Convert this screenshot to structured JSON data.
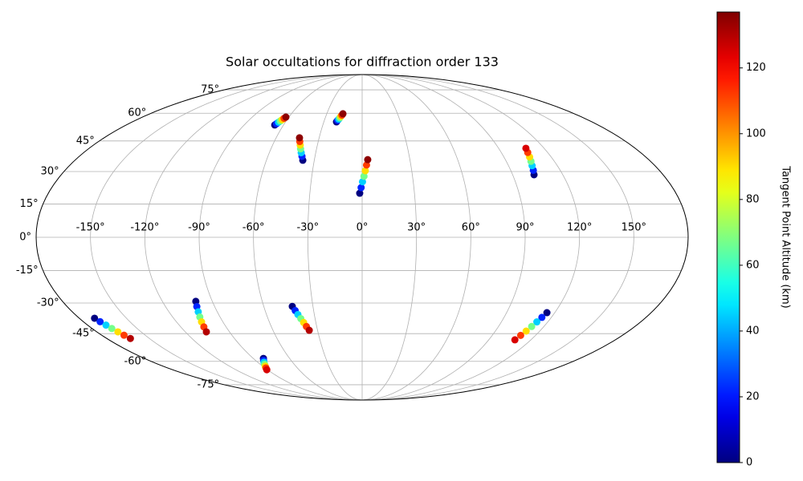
{
  "chart_data": {
    "type": "scatter",
    "projection": "mollweide",
    "title": "Solar occultations for diffraction order 133",
    "xlim": [
      -180,
      180
    ],
    "ylim": [
      -90,
      90
    ],
    "grid": true,
    "xticks": [
      {
        "value": -150,
        "label": "-150°"
      },
      {
        "value": -120,
        "label": "-120°"
      },
      {
        "value": -90,
        "label": "-90°"
      },
      {
        "value": -60,
        "label": "-60°"
      },
      {
        "value": -30,
        "label": "-30°"
      },
      {
        "value": 0,
        "label": "0°"
      },
      {
        "value": 30,
        "label": "30°"
      },
      {
        "value": 60,
        "label": "60°"
      },
      {
        "value": 90,
        "label": "90°"
      },
      {
        "value": 120,
        "label": "120°"
      },
      {
        "value": 150,
        "label": "150°"
      }
    ],
    "yticks": [
      {
        "value": -75,
        "label": "-75°"
      },
      {
        "value": -60,
        "label": "-60°"
      },
      {
        "value": -45,
        "label": "-45°"
      },
      {
        "value": -30,
        "label": "-30°"
      },
      {
        "value": -15,
        "label": "-15°"
      },
      {
        "value": 0,
        "label": "0°"
      },
      {
        "value": 15,
        "label": "15°"
      },
      {
        "value": 30,
        "label": "30°"
      },
      {
        "value": 45,
        "label": "45°"
      },
      {
        "value": 60,
        "label": "60°"
      },
      {
        "value": 75,
        "label": "75°"
      }
    ],
    "colormap": "jet",
    "clim": [
      0,
      137
    ],
    "colorbar_label": "Tangent Point Altitude (km)",
    "colorbar_ticks": [
      0,
      20,
      40,
      60,
      80,
      100,
      120
    ],
    "series": [
      {
        "lon": [
          -66.7,
          -66.0,
          -65.3,
          -64.6,
          -63.9,
          -63.2,
          -62.5
        ],
        "lat": [
          53.4,
          54.1,
          54.9,
          55.6,
          56.3,
          57.1,
          57.8
        ],
        "altitude": [
          0,
          22,
          45,
          67,
          90,
          112,
          135
        ]
      },
      {
        "lon": [
          -37.2,
          -38.3,
          -39.4,
          -40.5,
          -41.5,
          -42.6,
          -43.7
        ],
        "lat": [
          35.4,
          37.3,
          39.1,
          41.0,
          42.9,
          44.7,
          46.6
        ],
        "altitude": [
          0,
          22,
          45,
          67,
          90,
          112,
          135
        ]
      },
      {
        "lon": [
          -20.1,
          -19.5,
          -18.8,
          -18.2,
          -17.6,
          -16.9,
          -16.3
        ],
        "lat": [
          55.1,
          55.9,
          56.6,
          57.4,
          58.2,
          58.9,
          59.7
        ],
        "altitude": [
          0,
          22,
          45,
          67,
          90,
          112,
          135
        ]
      },
      {
        "lon": [
          -1.4,
          -0.6,
          0.2,
          1.1,
          1.9,
          2.7,
          3.5
        ],
        "lat": [
          19.9,
          22.5,
          25.2,
          27.8,
          30.4,
          33.1,
          35.7
        ],
        "altitude": [
          0,
          22,
          45,
          67,
          90,
          112,
          135
        ]
      },
      {
        "lon": [
          102.8,
          103.7,
          104.5,
          105.4,
          106.3,
          107.1,
          108.0
        ],
        "lat": [
          28.5,
          30.6,
          32.8,
          34.9,
          37.0,
          39.2,
          41.3
        ],
        "altitude": [
          0,
          22,
          45,
          67,
          90,
          112,
          125
        ]
      },
      {
        "lon": [
          -170.3,
          -169.2,
          -168.0,
          -166.9,
          -165.7,
          -164.6,
          -163.4
        ],
        "lat": [
          -37.3,
          -39.0,
          -40.7,
          -42.4,
          -44.1,
          -45.8,
          -47.5
        ],
        "altitude": [
          0,
          22,
          45,
          67,
          90,
          112,
          130
        ]
      },
      {
        "lon": [
          -99.9,
          -100.9,
          -101.8,
          -102.8,
          -103.8,
          -104.7,
          -105.7
        ],
        "lat": [
          -29.2,
          -31.7,
          -34.2,
          -36.7,
          -39.1,
          -41.6,
          -44.1
        ],
        "altitude": [
          0,
          22,
          45,
          67,
          90,
          112,
          130
        ]
      },
      {
        "lon": [
          -42.6,
          -41.4,
          -40.3,
          -39.1,
          -37.9,
          -36.8,
          -35.6
        ],
        "lat": [
          -31.6,
          -33.6,
          -35.5,
          -37.5,
          -39.4,
          -41.4,
          -43.3
        ],
        "altitude": [
          0,
          22,
          45,
          67,
          90,
          112,
          130
        ]
      },
      {
        "lon": [
          -81.6,
          -83.1,
          -84.6,
          -86.1,
          -87.6,
          -89.1,
          -90.6
        ],
        "lat": [
          -58.3,
          -59.4,
          -60.5,
          -61.7,
          -62.8,
          -63.9,
          -65.0
        ],
        "altitude": [
          0,
          22,
          45,
          67,
          90,
          112,
          125
        ]
      },
      {
        "lon": [
          115.1,
          114.0,
          112.9,
          111.9,
          110.8,
          109.7,
          108.6
        ],
        "lat": [
          -34.6,
          -36.9,
          -39.1,
          -41.4,
          -43.7,
          -45.9,
          -48.2
        ],
        "altitude": [
          0,
          22,
          45,
          67,
          90,
          112,
          125
        ]
      }
    ]
  }
}
